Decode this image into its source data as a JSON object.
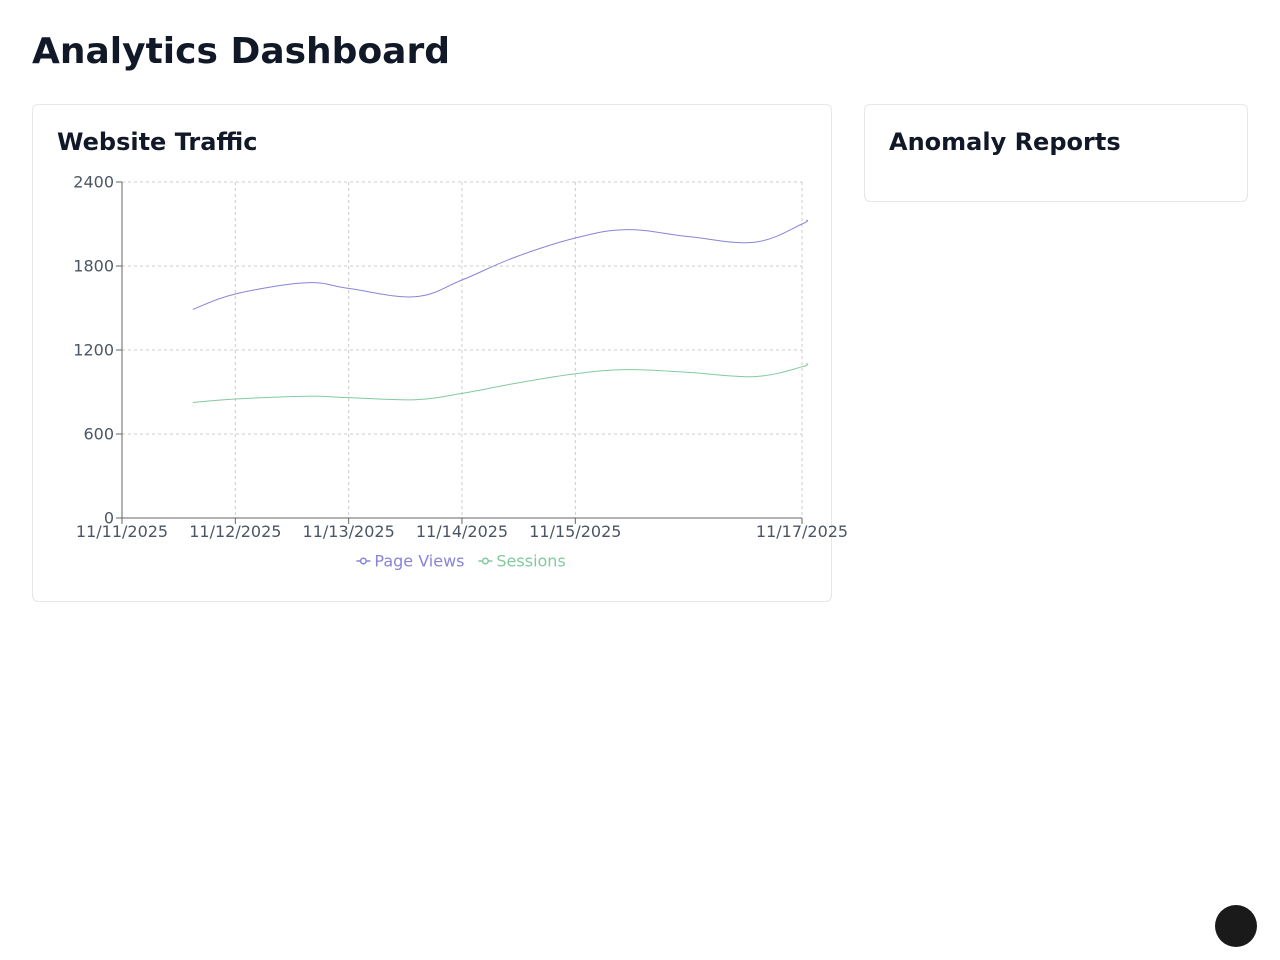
{
  "page": {
    "title": "Analytics Dashboard"
  },
  "traffic_card": {
    "title": "Website Traffic"
  },
  "anomaly_card": {
    "title": "Anomaly Reports"
  },
  "chart_data": {
    "type": "line",
    "title": "",
    "xlabel": "",
    "ylabel": "",
    "x_ticks": [
      "11/11/2025",
      "11/12/2025",
      "11/13/2025",
      "11/14/2025",
      "11/15/2025",
      "11/17/2025"
    ],
    "x_tick_positions": [
      "2025-11-11",
      "2025-11-12",
      "2025-11-13",
      "2025-11-14",
      "2025-11-15",
      "2025-11-17"
    ],
    "xlim": [
      "2025-11-11",
      "2025-11-17"
    ],
    "ylim": [
      0,
      2400
    ],
    "y_ticks": [
      0,
      600,
      1200,
      1800,
      2400
    ],
    "grid": true,
    "legend_position": "bottom",
    "series": [
      {
        "name": "Page Views",
        "color": "#8884d8",
        "points": [
          {
            "x": "2025-11-11 15:00",
            "y": 1490
          },
          {
            "x": "2025-11-12 00:00",
            "y": 1600
          },
          {
            "x": "2025-11-12 15:00",
            "y": 1680
          },
          {
            "x": "2025-11-13 00:00",
            "y": 1640
          },
          {
            "x": "2025-11-13 14:00",
            "y": 1580
          },
          {
            "x": "2025-11-14 00:00",
            "y": 1700
          },
          {
            "x": "2025-11-14 11:00",
            "y": 1860
          },
          {
            "x": "2025-11-15 00:00",
            "y": 2000
          },
          {
            "x": "2025-11-15 11:00",
            "y": 2060
          },
          {
            "x": "2025-11-16 00:00",
            "y": 2010
          },
          {
            "x": "2025-11-16 14:00",
            "y": 1970
          },
          {
            "x": "2025-11-17 00:00",
            "y": 2100
          },
          {
            "x": "2025-11-17 01:00",
            "y": 2130
          }
        ]
      },
      {
        "name": "Sessions",
        "color": "#82ca9d",
        "points": [
          {
            "x": "2025-11-11 15:00",
            "y": 825
          },
          {
            "x": "2025-11-12 00:00",
            "y": 850
          },
          {
            "x": "2025-11-12 15:00",
            "y": 870
          },
          {
            "x": "2025-11-13 00:00",
            "y": 860
          },
          {
            "x": "2025-11-13 14:00",
            "y": 845
          },
          {
            "x": "2025-11-14 00:00",
            "y": 890
          },
          {
            "x": "2025-11-14 11:00",
            "y": 960
          },
          {
            "x": "2025-11-15 00:00",
            "y": 1030
          },
          {
            "x": "2025-11-15 11:00",
            "y": 1060
          },
          {
            "x": "2025-11-16 00:00",
            "y": 1040
          },
          {
            "x": "2025-11-16 14:00",
            "y": 1010
          },
          {
            "x": "2025-11-17 00:00",
            "y": 1080
          },
          {
            "x": "2025-11-17 01:00",
            "y": 1105
          }
        ]
      }
    ]
  }
}
